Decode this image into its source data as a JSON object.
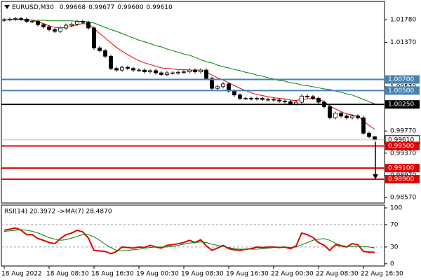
{
  "chart_data": [
    {
      "type": "candlestick",
      "title": "EURUSD,M30",
      "quote": [
        "0.99668",
        "0.99677",
        "0.99600",
        "0.99610"
      ],
      "categories": [
        "18 Aug 2022",
        null,
        null,
        null,
        null,
        null,
        null,
        null,
        "18 Aug 08:30",
        null,
        null,
        null,
        null,
        null,
        null,
        null,
        "18 Aug 16:30",
        null,
        null,
        null,
        null,
        null,
        null,
        null,
        "19 Aug 00:30",
        null,
        null,
        null,
        null,
        null,
        null,
        null,
        "19 Aug 08:30",
        null,
        null,
        null,
        null,
        null,
        null,
        null,
        "19 Aug 16:30",
        null,
        null,
        null,
        null,
        null,
        null,
        null,
        "22 Aug 00:30",
        null,
        null,
        null,
        null,
        null,
        null,
        null,
        "22 Aug 08:30",
        null,
        null,
        null,
        null,
        null,
        null,
        null,
        "22 Aug 16:30",
        null,
        null
      ],
      "open": [
        1.0177,
        1.0178,
        1.0179,
        1.018,
        1.0179,
        1.0175,
        1.0175,
        1.0169,
        1.0165,
        1.016,
        1.0157,
        1.0163,
        1.0168,
        1.017,
        1.0175,
        1.0173,
        1.0163,
        1.0127,
        1.0122,
        1.0112,
        1.009,
        1.0087,
        1.0092,
        1.009,
        1.0087,
        1.0087,
        1.0084,
        1.0086,
        1.0082,
        1.0079,
        1.0082,
        1.0082,
        1.0083,
        1.0084,
        1.0087,
        1.0084,
        1.0087,
        1.0072,
        1.0054,
        1.0057,
        1.0062,
        1.0049,
        1.0042,
        1.0036,
        1.0036,
        1.0035,
        1.0036,
        1.0034,
        1.0034,
        1.0033,
        1.0031,
        1.003,
        1.0026,
        1.0029,
        1.004,
        1.0039,
        1.0036,
        1.0029,
        1.0021,
        1.0001,
        1.0009,
        1.0004,
        1.0001,
        1.0004,
        1.0001,
        0.9973,
        0.99668
      ],
      "high": [
        1.0181,
        1.0182,
        1.0183,
        1.0183,
        1.0182,
        1.0178,
        1.0178,
        1.0172,
        1.0168,
        1.0163,
        1.0166,
        1.0171,
        1.0173,
        1.0178,
        1.0178,
        1.0176,
        1.0166,
        1.013,
        1.0125,
        1.0115,
        1.0093,
        1.0095,
        1.0095,
        1.0093,
        1.009,
        1.009,
        1.0089,
        1.0089,
        1.0085,
        1.0085,
        1.0085,
        1.0086,
        1.0087,
        1.009,
        1.009,
        1.009,
        1.009,
        1.0075,
        1.006,
        1.0065,
        1.0065,
        1.0052,
        1.0045,
        1.0039,
        1.0039,
        1.0039,
        1.0039,
        1.0037,
        1.0037,
        1.0036,
        1.0034,
        1.0033,
        1.0032,
        1.0043,
        1.0043,
        1.0042,
        1.0039,
        1.0032,
        1.0024,
        1.0012,
        1.0012,
        1.0007,
        1.0007,
        1.0007,
        1.0004,
        0.9976,
        0.99677
      ],
      "low": [
        1.0174,
        1.0175,
        1.0176,
        1.0176,
        1.0172,
        1.0172,
        1.0166,
        1.0162,
        1.0157,
        1.0154,
        1.0154,
        1.016,
        1.0165,
        1.0167,
        1.017,
        1.016,
        1.0124,
        1.0119,
        1.0109,
        1.0087,
        1.0084,
        1.0084,
        1.0087,
        1.0084,
        1.0084,
        1.0081,
        1.0081,
        1.0079,
        1.0076,
        1.0076,
        1.0079,
        1.0079,
        1.008,
        1.0081,
        1.0081,
        1.0081,
        1.0069,
        1.0051,
        1.0051,
        1.0054,
        1.0046,
        1.0039,
        1.0033,
        1.0033,
        1.0032,
        1.0032,
        1.0031,
        1.0031,
        1.003,
        1.0028,
        1.0027,
        1.0023,
        1.0023,
        1.0026,
        1.0036,
        1.0033,
        1.0026,
        1.0018,
        0.9998,
        0.9998,
        1.0001,
        0.9998,
        0.9998,
        0.9998,
        0.997,
        0.9964,
        0.996
      ],
      "close": [
        1.0178,
        1.0179,
        1.018,
        1.0179,
        1.0175,
        1.0175,
        1.0169,
        1.0165,
        1.016,
        1.0157,
        1.0163,
        1.0168,
        1.017,
        1.0175,
        1.0173,
        1.0163,
        1.0127,
        1.0122,
        1.0112,
        1.009,
        1.0087,
        1.0092,
        1.009,
        1.0087,
        1.0087,
        1.0084,
        1.0086,
        1.0082,
        1.0079,
        1.0082,
        1.0082,
        1.0083,
        1.0084,
        1.0087,
        1.0084,
        1.0087,
        1.0072,
        1.0054,
        1.0057,
        1.0062,
        1.0049,
        1.0042,
        1.0036,
        1.0036,
        1.0035,
        1.0036,
        1.0034,
        1.0034,
        1.0033,
        1.0031,
        1.003,
        1.0026,
        1.0029,
        1.004,
        1.0039,
        1.0036,
        1.0029,
        1.0021,
        1.0001,
        1.0009,
        1.0004,
        1.0001,
        1.0004,
        1.0001,
        0.9973,
        0.99668,
        0.9961
      ],
      "series": [
        {
          "color": "#e00000",
          "values": [
            1.0178,
            1.0178,
            1.0179,
            1.0179,
            1.0178,
            1.0177,
            1.0174,
            1.0171,
            1.0167,
            1.0164,
            1.0163,
            1.0164,
            1.0166,
            1.0169,
            1.0171,
            1.017,
            1.0162,
            1.0153,
            1.0145,
            1.0136,
            1.0128,
            1.0121,
            1.0115,
            1.0109,
            1.0104,
            1.01,
            1.0097,
            1.0094,
            1.0091,
            1.009,
            1.0089,
            1.0088,
            1.0088,
            1.0087,
            1.0087,
            1.0087,
            1.0084,
            1.0078,
            1.0073,
            1.0069,
            1.0064,
            1.0059,
            1.0054,
            1.005,
            1.0046,
            1.0043,
            1.0041,
            1.0039,
            1.0037,
            1.0036,
            1.0035,
            1.0033,
            1.0032,
            1.0034,
            1.0035,
            1.0036,
            1.0034,
            1.003,
            1.0022,
            1.0017,
            1.0012,
            1.0008,
            1.0006,
            1.0004,
            0.9995,
            0.9987,
            0.998
          ]
        },
        {
          "color": "#008000",
          "values": [
            1.0178,
            1.0178,
            1.0178,
            1.0178,
            1.0177,
            1.0177,
            1.0177,
            1.0177,
            1.0176,
            1.0176,
            1.0176,
            1.0176,
            1.0176,
            1.0175,
            1.0175,
            1.0174,
            1.0172,
            1.0168,
            1.0164,
            1.016,
            1.0157,
            1.0153,
            1.0149,
            1.0145,
            1.0141,
            1.0138,
            1.0135,
            1.0131,
            1.0129,
            1.0125,
            1.0122,
            1.0119,
            1.0116,
            1.0114,
            1.011,
            1.0106,
            1.0102,
            1.01,
            1.0096,
            1.0093,
            1.0091,
            1.0088,
            1.0086,
            1.0083,
            1.0081,
            1.0078,
            1.0076,
            1.0073,
            1.0071,
            1.0068,
            1.0067,
            1.0064,
            1.0063,
            1.006,
            1.0059,
            1.0057,
            1.0055,
            1.0053,
            1.0052,
            1.0049,
            1.0047,
            1.0044,
            1.0042,
            1.0038,
            1.0034,
            1.003,
            1.0026
          ]
        }
      ],
      "ylim": [
        0.9847,
        1.0211
      ],
      "yticks": [
        {
          "value": 1.0178,
          "label": "1.01780"
        },
        {
          "value": 1.0137,
          "label": "1.01370"
        },
        {
          "value": 1.0057,
          "label": "1.00570"
        },
        {
          "value": 0.9977,
          "label": "0.99770"
        },
        {
          "value": 0.9937,
          "label": "0.99370"
        },
        {
          "value": 0.9897,
          "label": "0.98970"
        },
        {
          "value": 0.9857,
          "label": "0.98570"
        }
      ],
      "levels": [
        {
          "value": 1.007,
          "label": "1.00700",
          "color": "#4682b4"
        },
        {
          "value": 1.005,
          "label": "1.00500",
          "color": "#4682b4"
        },
        {
          "value": 1.0025,
          "label": "1.00250",
          "color": "#000000"
        },
        {
          "value": 0.995,
          "label": "0.99500",
          "color": "#e00000"
        },
        {
          "value": 0.991,
          "label": "0.99100",
          "color": "#e00000"
        },
        {
          "value": 0.989,
          "label": "0.98900",
          "color": "#e00000"
        }
      ],
      "current_price": {
        "value": 0.9961,
        "label": "0.99610",
        "color": "#c0c0c0"
      }
    },
    {
      "type": "line",
      "title": "RSI(14) 20.3972 ->MA(7) 28.4870",
      "series": [
        {
          "color": "#e00000",
          "values": [
            60,
            62,
            64,
            60,
            52,
            52,
            45,
            42,
            38,
            36,
            45,
            52,
            55,
            60,
            57,
            46,
            24,
            23,
            22,
            18,
            22,
            30,
            29,
            28,
            30,
            29,
            33,
            30,
            28,
            33,
            34,
            36,
            38,
            42,
            38,
            43,
            32,
            24,
            28,
            33,
            27,
            25,
            24,
            26,
            27,
            30,
            29,
            30,
            30,
            29,
            30,
            27,
            32,
            55,
            52,
            47,
            38,
            33,
            24,
            34,
            32,
            30,
            36,
            34,
            22,
            21,
            20.3972
          ]
        },
        {
          "color": "#008000",
          "values": [
            58,
            59,
            60,
            61,
            60,
            58,
            55,
            51,
            47,
            44,
            42,
            43,
            46,
            49,
            52,
            52,
            48,
            42,
            35,
            29,
            24,
            23,
            24,
            25,
            26,
            28,
            29,
            30,
            30,
            30,
            31,
            33,
            35,
            37,
            38,
            39,
            38,
            35,
            33,
            31,
            29,
            27,
            26,
            26,
            26,
            26,
            27,
            28,
            29,
            30,
            30,
            29,
            30,
            34,
            38,
            42,
            44,
            45,
            42,
            37,
            33,
            31,
            31,
            31,
            31,
            30,
            28.487
          ]
        }
      ],
      "ylim": [
        -4,
        105
      ],
      "yticks": [
        100,
        70,
        30,
        0
      ],
      "levels": [
        70,
        30
      ]
    }
  ]
}
